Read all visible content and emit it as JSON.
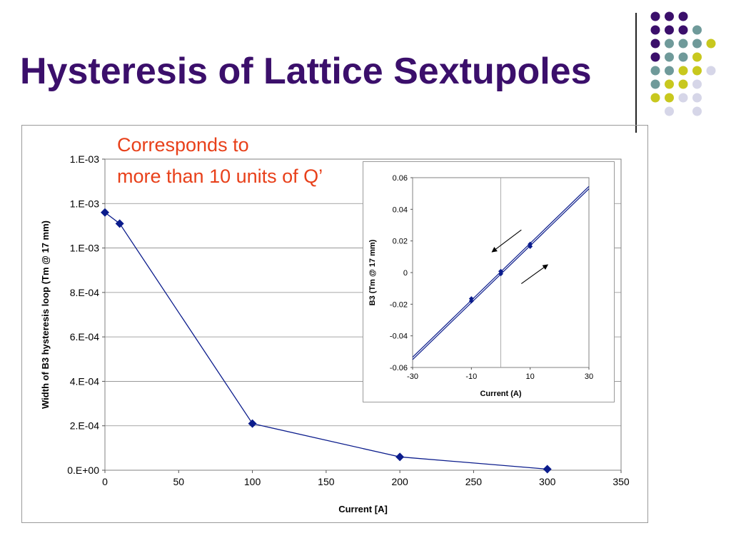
{
  "slide": {
    "title": "Hysteresis of Lattice Sextupoles",
    "annotation_line1": "Corresponds to",
    "annotation_line2": "more than 10 units of Q’",
    "colors": {
      "title": "#3b0f6b",
      "annotation": "#e8401a",
      "dot_purple": "#3b0f6b",
      "dot_teal": "#6f9a9a",
      "dot_yellow": "#c8c81e",
      "dot_lavender": "#d6d6e8"
    }
  },
  "chart_data": [
    {
      "type": "line",
      "xlabel": "Current [A]",
      "ylabel": "Width of B3 hysteresis loop (Tm @ 17 mm)",
      "xlim": [
        0,
        350
      ],
      "ylim": [
        0,
        0.0014
      ],
      "xticks": [
        0,
        50,
        100,
        150,
        200,
        250,
        300,
        350
      ],
      "yticks": [
        0,
        0.0002,
        0.0004,
        0.0006,
        0.0008,
        0.001,
        0.0012,
        0.0014
      ],
      "yticklabels": [
        "0.E+00",
        "2.E-04",
        "4.E-04",
        "6.E-04",
        "8.E-04",
        "1.E-03",
        "1.E-03",
        "1.E-03"
      ],
      "grid": "horizontal",
      "series": [
        {
          "color": "#0b1c8c",
          "points": [
            [
              0,
              0.00116
            ],
            [
              10,
              0.00111
            ],
            [
              100,
              0.00021
            ],
            [
              200,
              6e-05
            ],
            [
              300,
              5e-06
            ]
          ]
        }
      ]
    },
    {
      "type": "line",
      "xlabel": "Current (A)",
      "ylabel": "B3 (Tm @ 17 mm)",
      "xlim": [
        -30,
        30
      ],
      "ylim": [
        -0.06,
        0.06
      ],
      "xticks": [
        -30,
        -10,
        10,
        30
      ],
      "yticks": [
        -0.06,
        -0.04,
        -0.02,
        0,
        0.02,
        0.04,
        0.06
      ],
      "yticklabels": [
        "-0.06",
        "-0.04",
        "-0.02",
        "0",
        "0.02",
        "0.04",
        "0.06"
      ],
      "grid": "vertical at 0",
      "arrows": [
        "down-left (decreasing current)",
        "up-right (increasing current)"
      ],
      "series": [
        {
          "color": "#0b1c8c",
          "points": [
            [
              -30,
              -0.0535
            ],
            [
              30,
              0.0545
            ]
          ]
        },
        {
          "color": "#0b1c8c",
          "points": [
            [
              -30,
              -0.055
            ],
            [
              30,
              0.053
            ]
          ]
        },
        {
          "color": "#0b1c8c",
          "marker": "diamond",
          "points": [
            [
              -10,
              -0.018
            ],
            [
              -10,
              -0.0165
            ],
            [
              0,
              0.0008
            ],
            [
              0,
              -0.0008
            ],
            [
              10,
              0.0165
            ],
            [
              10,
              0.018
            ]
          ]
        }
      ]
    }
  ]
}
